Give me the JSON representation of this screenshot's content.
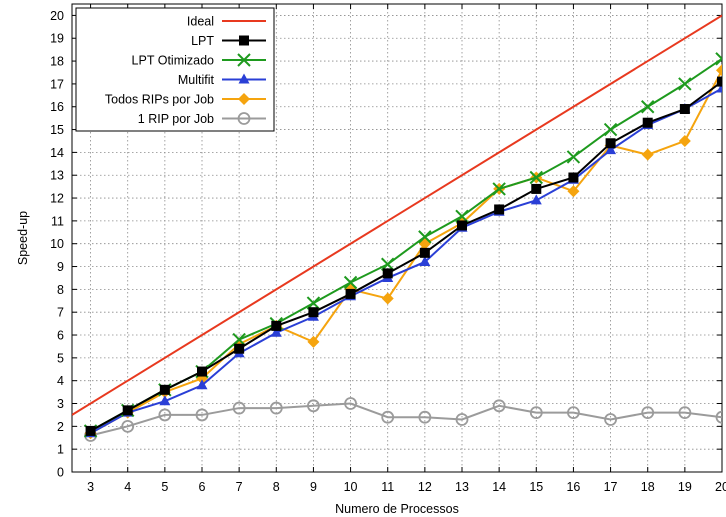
{
  "chart_data": {
    "type": "line",
    "xlabel": "Numero de Processos",
    "ylabel": "Speed-up",
    "x": [
      3,
      4,
      5,
      6,
      7,
      8,
      9,
      10,
      11,
      12,
      13,
      14,
      15,
      16,
      17,
      18,
      19,
      20
    ],
    "xlim": [
      2.5,
      20
    ],
    "ylim": [
      0,
      20.5
    ],
    "yticks": [
      0,
      1,
      2,
      3,
      4,
      5,
      6,
      7,
      8,
      9,
      10,
      11,
      12,
      13,
      14,
      15,
      16,
      17,
      18,
      19,
      20
    ],
    "grid": "dotted",
    "legend_position": "top-left",
    "series": [
      {
        "name": "Ideal",
        "color": "#e8391f",
        "marker": "none",
        "values": [
          2.5,
          20
        ],
        "x": [
          2.5,
          20
        ]
      },
      {
        "name": "LPT",
        "color": "#000000",
        "marker": "square",
        "values": [
          1.8,
          2.7,
          3.6,
          4.4,
          5.4,
          6.4,
          7.0,
          7.8,
          8.7,
          9.6,
          10.8,
          11.5,
          12.4,
          12.9,
          14.4,
          15.3,
          15.9,
          17.1
        ]
      },
      {
        "name": "LPT Otimizado",
        "color": "#1e9a1e",
        "marker": "x",
        "values": [
          1.8,
          2.7,
          3.6,
          4.4,
          5.8,
          6.5,
          7.4,
          8.3,
          9.1,
          10.3,
          11.2,
          12.4,
          12.9,
          13.8,
          15.0,
          16.0,
          17.0,
          18.1
        ]
      },
      {
        "name": "Multifit",
        "color": "#2a3fd6",
        "marker": "triangle",
        "values": [
          1.7,
          2.6,
          3.1,
          3.8,
          5.2,
          6.1,
          6.8,
          7.7,
          8.5,
          9.2,
          10.7,
          11.4,
          11.9,
          12.8,
          14.1,
          15.2,
          15.9,
          16.8
        ]
      },
      {
        "name": "Todos RIPs por Job",
        "color": "#f5a40e",
        "marker": "diamond",
        "values": [
          1.7,
          2.6,
          3.5,
          4.1,
          5.6,
          6.4,
          5.7,
          8.0,
          7.6,
          10.0,
          10.9,
          12.4,
          12.9,
          12.3,
          14.3,
          13.9,
          14.5,
          17.6
        ]
      },
      {
        "name": "1 RIP por Job",
        "color": "#9b9b9b",
        "marker": "circle",
        "values": [
          1.6,
          2.0,
          2.5,
          2.5,
          2.8,
          2.8,
          2.9,
          3.0,
          2.4,
          2.4,
          2.3,
          2.9,
          2.6,
          2.6,
          2.3,
          2.6,
          2.6,
          2.4
        ]
      }
    ]
  }
}
